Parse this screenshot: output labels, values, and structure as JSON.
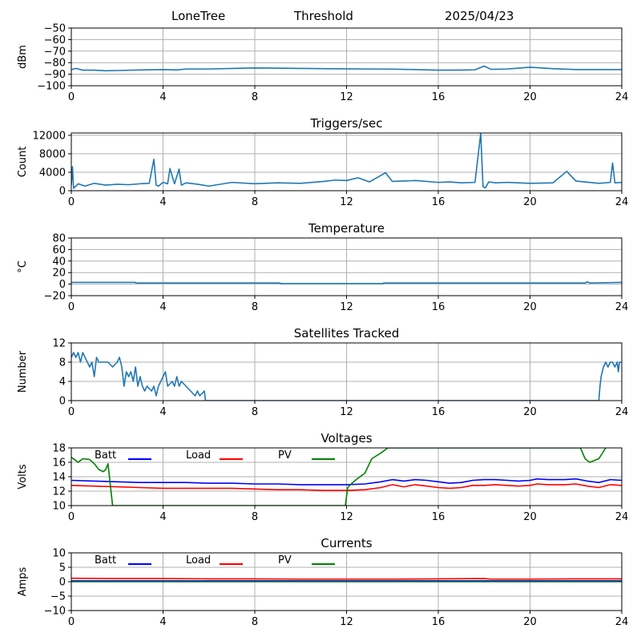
{
  "header": {
    "station": "LoneTree",
    "mode": "Threshold",
    "date": "2025/04/23"
  },
  "colors": {
    "series_default": "#1f77b4",
    "batt": "#0000ff",
    "load": "#ff0000",
    "pv": "#008000",
    "grid": "#b0b0b0"
  },
  "chart_data": [
    {
      "type": "line",
      "title": "",
      "ylabel": "dBm",
      "xlim": [
        0,
        24
      ],
      "ylim": [
        -100,
        -50
      ],
      "x_ticks": [
        "0",
        "4",
        "8",
        "12",
        "16",
        "20",
        "24"
      ],
      "y_ticks": [
        "−100",
        "−90",
        "−80",
        "−70",
        "−60",
        "−50"
      ],
      "grid": true,
      "series": [
        {
          "x": [
            0,
            0.2,
            0.5,
            1,
            1.5,
            2,
            3,
            4,
            4.6,
            5,
            6,
            7,
            8,
            9,
            10,
            11,
            12,
            13,
            14,
            15,
            16,
            17,
            17.6,
            18,
            18.3,
            19,
            20,
            21,
            22,
            23,
            24
          ],
          "y": [
            -86,
            -85,
            -86.5,
            -86.5,
            -87,
            -86.8,
            -86.3,
            -86,
            -86.3,
            -85.5,
            -85.5,
            -85,
            -84.6,
            -84.8,
            -85,
            -85.2,
            -85.4,
            -85.5,
            -85.6,
            -86,
            -86.5,
            -86.4,
            -86.2,
            -83,
            -85.8,
            -85.5,
            -84,
            -85.2,
            -86,
            -86,
            -86
          ]
        }
      ]
    },
    {
      "type": "line",
      "title": "Triggers/sec",
      "ylabel": "Count",
      "xlim": [
        0,
        24
      ],
      "ylim": [
        0,
        12500
      ],
      "x_ticks": [
        "0",
        "4",
        "8",
        "12",
        "16",
        "20",
        "24"
      ],
      "y_ticks": [
        "0",
        "4000",
        "8000",
        "12000"
      ],
      "grid": true,
      "series": [
        {
          "x": [
            0,
            0.05,
            0.1,
            0.3,
            0.6,
            1,
            1.5,
            2,
            2.5,
            3,
            3.4,
            3.6,
            3.7,
            3.8,
            4,
            4.2,
            4.3,
            4.5,
            4.7,
            4.8,
            5,
            5.5,
            6,
            7,
            8,
            9,
            10,
            11,
            11.5,
            12,
            12.5,
            13,
            13.7,
            14,
            15,
            16,
            16.5,
            17,
            17.6,
            17.85,
            17.95,
            18.05,
            18.2,
            18.5,
            19,
            20,
            21,
            21.6,
            22,
            23,
            23.5,
            23.6,
            23.7,
            24
          ],
          "y": [
            1200,
            5200,
            500,
            1500,
            1000,
            1600,
            1200,
            1400,
            1300,
            1500,
            1600,
            6800,
            1200,
            1000,
            1800,
            1500,
            4800,
            1500,
            4700,
            1200,
            1700,
            1400,
            1000,
            1800,
            1500,
            1700,
            1600,
            2000,
            2300,
            2200,
            2800,
            1900,
            3900,
            2000,
            2200,
            1800,
            1900,
            1700,
            1800,
            12400,
            900,
            600,
            1900,
            1700,
            1800,
            1600,
            1700,
            4200,
            2100,
            1600,
            1800,
            6000,
            1700,
            1800
          ]
        }
      ]
    },
    {
      "type": "line",
      "title": "Temperature",
      "ylabel": "°C",
      "xlim": [
        0,
        24
      ],
      "ylim": [
        -20,
        80
      ],
      "x_ticks": [
        "0",
        "4",
        "8",
        "12",
        "16",
        "20",
        "24"
      ],
      "y_ticks": [
        "−20",
        "0",
        "20",
        "40",
        "60",
        "80"
      ],
      "grid": true,
      "series": [
        {
          "x": [
            0,
            2.8,
            2.81,
            9.1,
            9.11,
            13.6,
            13.61,
            22.4,
            22.5,
            22.6,
            24
          ],
          "y": [
            3,
            3,
            2,
            2,
            1,
            1,
            2,
            2,
            4,
            2,
            3
          ]
        }
      ]
    },
    {
      "type": "line",
      "title": "Satellites Tracked",
      "ylabel": "Number",
      "xlim": [
        0,
        24
      ],
      "ylim": [
        0,
        12
      ],
      "x_ticks": [
        "0",
        "4",
        "8",
        "12",
        "16",
        "20",
        "24"
      ],
      "y_ticks": [
        "0",
        "4",
        "8",
        "12"
      ],
      "grid": true,
      "series": [
        {
          "x": [
            0,
            0.1,
            0.2,
            0.3,
            0.4,
            0.5,
            0.6,
            0.8,
            0.9,
            1,
            1.1,
            1.2,
            1.4,
            1.6,
            1.8,
            2,
            2.1,
            2.2,
            2.3,
            2.4,
            2.5,
            2.6,
            2.7,
            2.8,
            2.9,
            3,
            3.1,
            3.2,
            3.3,
            3.5,
            3.6,
            3.7,
            3.8,
            3.9,
            4,
            4.1,
            4.2,
            4.4,
            4.5,
            4.6,
            4.7,
            4.8,
            5,
            5.2,
            5.4,
            5.5,
            5.6,
            5.8,
            5.85,
            6,
            23,
            23.05,
            23.1,
            23.2,
            23.3,
            23.4,
            23.5,
            23.6,
            23.7,
            23.8,
            23.85,
            23.9,
            24
          ],
          "y": [
            9,
            10,
            9,
            10,
            8,
            10,
            9,
            7,
            8,
            5,
            9,
            8,
            8,
            8,
            7,
            8,
            9,
            7,
            3,
            6,
            5,
            6,
            4,
            7,
            3,
            5,
            3,
            2,
            3,
            2,
            3,
            1,
            3,
            4,
            5,
            6,
            3,
            4,
            3,
            5,
            3,
            4,
            3,
            2,
            1,
            2,
            1,
            2,
            0,
            0,
            0,
            3,
            5,
            7,
            8,
            7,
            8,
            8,
            7,
            8,
            6,
            8,
            8
          ]
        }
      ]
    },
    {
      "type": "line",
      "title": "Voltages",
      "ylabel": "Volts",
      "xlim": [
        0,
        24
      ],
      "ylim": [
        10,
        18
      ],
      "x_ticks": [
        "0",
        "4",
        "8",
        "12",
        "16",
        "20",
        "24"
      ],
      "y_ticks": [
        "10",
        "12",
        "14",
        "16",
        "18"
      ],
      "grid": true,
      "legend": [
        "Batt",
        "Load",
        "PV"
      ],
      "series": [
        {
          "name": "Batt",
          "x": [
            0,
            1,
            2,
            3,
            4,
            5,
            6,
            7,
            8,
            9,
            10,
            11,
            12,
            12.8,
            13.5,
            14,
            14.5,
            15,
            15.5,
            16,
            16.5,
            17,
            17.5,
            18,
            18.5,
            19,
            19.5,
            20,
            20.3,
            20.8,
            21.5,
            22,
            22.5,
            23,
            23.5,
            24
          ],
          "y": [
            13.5,
            13.4,
            13.3,
            13.2,
            13.2,
            13.2,
            13.1,
            13.1,
            13.0,
            13.0,
            12.9,
            12.9,
            12.9,
            13.0,
            13.3,
            13.6,
            13.4,
            13.6,
            13.5,
            13.3,
            13.1,
            13.2,
            13.5,
            13.6,
            13.6,
            13.5,
            13.4,
            13.5,
            13.7,
            13.6,
            13.6,
            13.7,
            13.4,
            13.2,
            13.6,
            13.5
          ]
        },
        {
          "name": "Load",
          "x": [
            0,
            1,
            2,
            3,
            4,
            5,
            6,
            7,
            8,
            9,
            10,
            11,
            12,
            12.8,
            13.5,
            14,
            14.5,
            15,
            15.5,
            16,
            16.5,
            17,
            17.5,
            18,
            18.5,
            19,
            19.5,
            20,
            20.3,
            20.8,
            21.5,
            22,
            22.5,
            23,
            23.5,
            24
          ],
          "y": [
            12.8,
            12.7,
            12.6,
            12.5,
            12.4,
            12.4,
            12.4,
            12.4,
            12.3,
            12.2,
            12.2,
            12.1,
            12.1,
            12.2,
            12.5,
            12.9,
            12.6,
            12.9,
            12.7,
            12.5,
            12.4,
            12.5,
            12.8,
            12.8,
            12.9,
            12.8,
            12.7,
            12.8,
            13.0,
            12.9,
            12.9,
            13.0,
            12.7,
            12.5,
            12.9,
            12.8
          ]
        },
        {
          "name": "PV",
          "x": [
            0,
            0.3,
            0.5,
            0.8,
            1.0,
            1.2,
            1.4,
            1.5,
            1.6,
            1.8,
            11.95,
            12.05,
            12.2,
            12.5,
            12.8,
            13.1,
            13.5,
            13.8,
            22.2,
            22.4,
            22.6,
            23.0,
            23.3
          ],
          "y": [
            16.7,
            16.0,
            16.5,
            16.4,
            15.8,
            15.0,
            14.7,
            15.0,
            15.8,
            10.0,
            10.0,
            12.5,
            13.0,
            13.8,
            14.5,
            16.5,
            17.3,
            18.0,
            18.0,
            16.5,
            16.0,
            16.5,
            18.0
          ]
        }
      ]
    },
    {
      "type": "line",
      "title": "Currents",
      "ylabel": "Amps",
      "xlim": [
        0,
        24
      ],
      "ylim": [
        -10,
        10
      ],
      "x_ticks": [
        "0",
        "4",
        "8",
        "12",
        "16",
        "20",
        "24"
      ],
      "y_ticks": [
        "−10",
        "−5",
        "0",
        "5",
        "10"
      ],
      "grid": true,
      "legend": [
        "Batt",
        "Load",
        "PV"
      ],
      "series": [
        {
          "name": "Batt",
          "x": [
            0,
            4,
            8,
            12,
            16,
            20,
            24
          ],
          "y": [
            0.3,
            0.3,
            0.3,
            0.3,
            0.3,
            0.3,
            0.3
          ]
        },
        {
          "name": "Load",
          "x": [
            0,
            2,
            4,
            6,
            8,
            10,
            12,
            14,
            16,
            18,
            18.3,
            20,
            22,
            24
          ],
          "y": [
            1.2,
            1.1,
            1.1,
            1.0,
            1.0,
            0.9,
            0.9,
            0.9,
            1.0,
            1.1,
            0.9,
            0.9,
            1.0,
            1.0
          ]
        },
        {
          "name": "PV",
          "x": [
            0,
            24
          ],
          "y": [
            0.0,
            0.0
          ]
        }
      ]
    }
  ]
}
